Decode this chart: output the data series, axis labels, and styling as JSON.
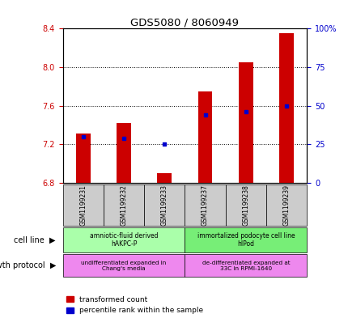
{
  "title": "GDS5080 / 8060949",
  "samples": [
    "GSM1199231",
    "GSM1199232",
    "GSM1199233",
    "GSM1199237",
    "GSM1199238",
    "GSM1199239"
  ],
  "transformed_count": [
    7.31,
    7.42,
    6.9,
    7.75,
    8.05,
    8.35
  ],
  "percentile_rank": [
    30,
    29,
    25,
    44,
    46,
    50
  ],
  "ylim_left": [
    6.8,
    8.4
  ],
  "ylim_right": [
    0,
    100
  ],
  "yticks_left": [
    6.8,
    7.2,
    7.6,
    8.0,
    8.4
  ],
  "yticks_right": [
    0,
    25,
    50,
    75,
    100
  ],
  "bar_color": "#cc0000",
  "dot_color": "#0000cc",
  "bar_bottom": 6.8,
  "cell_line_groups": [
    {
      "label": "amniotic-fluid derived\nhAKPC-P",
      "start": 0,
      "end": 3,
      "color": "#aaffaa"
    },
    {
      "label": "immortalized podocyte cell line\nhIPod",
      "start": 3,
      "end": 6,
      "color": "#77ee77"
    }
  ],
  "growth_protocol_groups": [
    {
      "label": "undifferentiated expanded in\nChang's media",
      "start": 0,
      "end": 3,
      "color": "#ee88ee"
    },
    {
      "label": "de-differentiated expanded at\n33C in RPMI-1640",
      "start": 3,
      "end": 6,
      "color": "#ee88ee"
    }
  ],
  "tick_label_color_left": "#cc0000",
  "tick_label_color_right": "#0000cc",
  "sample_box_color": "#cccccc",
  "figsize": [
    4.31,
    3.93
  ],
  "dpi": 100
}
